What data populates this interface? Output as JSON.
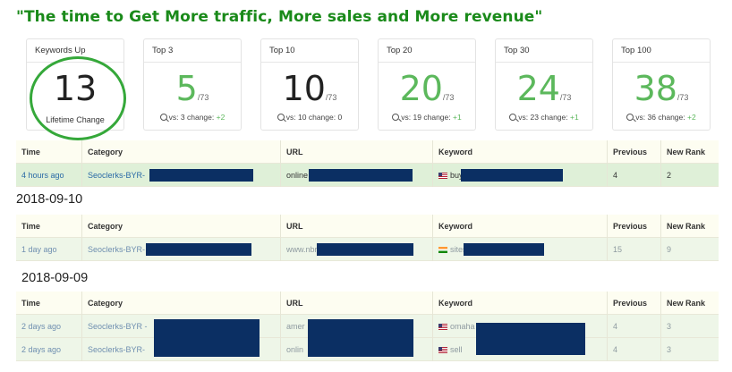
{
  "headline": "\"The time to Get More traffic, More sales and More revenue\"",
  "cards": [
    {
      "title": "Keywords Up",
      "value": "13",
      "denominator": "",
      "footer": "Lifetime Change",
      "color": "dark"
    },
    {
      "title": "Top 3",
      "value": "5",
      "denominator": "/73",
      "vs": "vs: 3",
      "change_label": "change:",
      "change": "+2",
      "color": "green"
    },
    {
      "title": "Top 10",
      "value": "10",
      "denominator": "/73",
      "vs": "vs: 10",
      "change_label": "change:",
      "change": "0",
      "color": "dark"
    },
    {
      "title": "Top 20",
      "value": "20",
      "denominator": "/73",
      "vs": "vs: 19",
      "change_label": "change:",
      "change": "+1",
      "color": "green"
    },
    {
      "title": "Top 30",
      "value": "24",
      "denominator": "/73",
      "vs": "vs: 23",
      "change_label": "change:",
      "change": "+1",
      "color": "green"
    },
    {
      "title": "Top 100",
      "value": "38",
      "denominator": "/73",
      "vs": "vs: 36",
      "change_label": "change:",
      "change": "+2",
      "color": "green"
    }
  ],
  "columns": [
    "Time",
    "Category",
    "URL",
    "Keyword",
    "Previous",
    "New Rank"
  ],
  "sections": [
    {
      "date": "",
      "rows": [
        {
          "time": "4 hours ago",
          "category": "Seoclerks-BYR-",
          "url": "online",
          "keyword": "buy",
          "flag": "us",
          "previous": "4",
          "new_rank": "2"
        }
      ]
    },
    {
      "date": "2018-09-10",
      "rows": [
        {
          "time": "1 day ago",
          "category": "Seoclerks-BYR-",
          "url": "www.nbr",
          "keyword": "sites",
          "flag": "in",
          "previous": "15",
          "new_rank": "9"
        }
      ]
    },
    {
      "date": "2018-09-09",
      "rows": [
        {
          "time": "2 days ago",
          "category": "Seoclerks-BYR -",
          "url": "amer",
          "keyword": "omaha",
          "flag": "us",
          "previous": "4",
          "new_rank": "3"
        },
        {
          "time": "2 days ago",
          "category": "Seoclerks-BYR-",
          "url": "onlin",
          "keyword": "sell",
          "flag": "us",
          "previous": "4",
          "new_rank": "3"
        }
      ]
    }
  ],
  "colors": {
    "headline": "#1a8a1a",
    "green": "#5cb85c",
    "circle": "#35a83a",
    "redaction": "#0b2f63"
  }
}
